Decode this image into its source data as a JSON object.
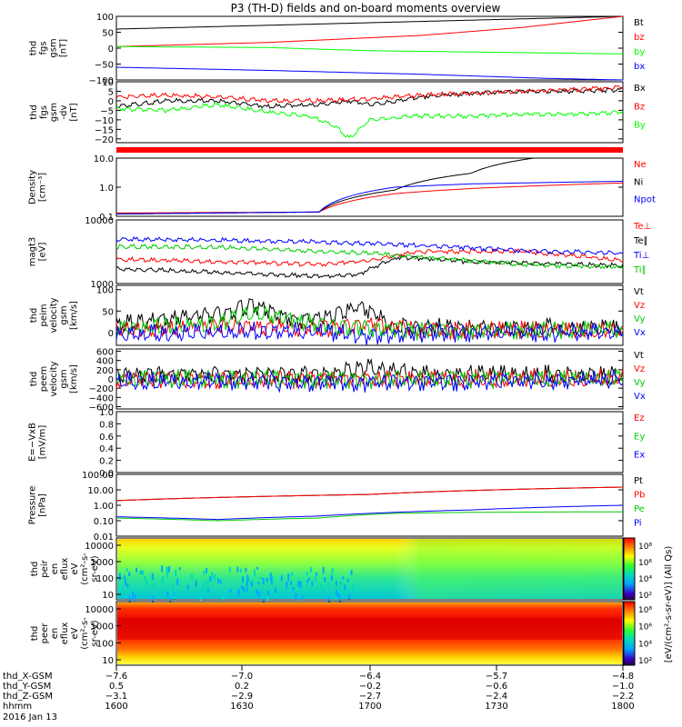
{
  "chart_data": {
    "type": "line",
    "title": "P3 (TH-D) fields and on-board moments overview",
    "panels": [
      {
        "id": "fgs_gsm",
        "label": [
          "thd",
          "fgs",
          "gsm",
          "[nT]"
        ],
        "scale": "linear",
        "ylim": [
          -100,
          100
        ],
        "ticks": [
          "100",
          "50",
          "0",
          "−50",
          "−100"
        ],
        "series": [
          {
            "name": "Bt",
            "color": "#000000",
            "x": [
              0,
              0.5,
              1
            ],
            "y": [
              60,
              80,
              100
            ]
          },
          {
            "name": "bz",
            "color": "#ff0000",
            "x": [
              0,
              0.3,
              0.6,
              0.8,
              1
            ],
            "y": [
              5,
              18,
              40,
              65,
              100
            ]
          },
          {
            "name": "by",
            "color": "#00ff00",
            "x": [
              0,
              0.3,
              0.5,
              0.7,
              1
            ],
            "y": [
              5,
              2,
              -8,
              -12,
              -18
            ]
          },
          {
            "name": "bx",
            "color": "#0000ff",
            "x": [
              0,
              0.3,
              0.6,
              0.85,
              1
            ],
            "y": [
              -60,
              -70,
              -82,
              -95,
              -100
            ]
          }
        ]
      },
      {
        "id": "fgs_gsm_dv",
        "label": [
          "thd",
          "fgs",
          "gsm",
          "-dv",
          "[nT]"
        ],
        "scale": "linear",
        "ylim": [
          -22,
          10
        ],
        "ticks": [
          "10",
          "5",
          "0",
          "−5",
          "−10",
          "−15",
          "−20"
        ],
        "series": [
          {
            "name": "Bx",
            "color": "#000000",
            "x": [
              0,
              0.1,
              0.2,
              0.3,
              0.4,
              0.46,
              0.5,
              0.53,
              0.6,
              0.7,
              0.8,
              0.9,
              1
            ],
            "y": [
              -3,
              0,
              0,
              -3,
              -2,
              0,
              -2,
              -1,
              2,
              4,
              5,
              5,
              6
            ]
          },
          {
            "name": "Bz",
            "color": "#ff0000",
            "x": [
              0,
              0.1,
              0.2,
              0.3,
              0.4,
              0.5,
              0.6,
              0.7,
              0.8,
              0.9,
              1
            ],
            "y": [
              2,
              3,
              2,
              0,
              0,
              1,
              3,
              4,
              5,
              6,
              7
            ]
          },
          {
            "name": "By",
            "color": "#00ff00",
            "x": [
              0,
              0.1,
              0.2,
              0.3,
              0.38,
              0.43,
              0.46,
              0.5,
              0.6,
              0.7,
              0.8,
              0.9,
              1
            ],
            "y": [
              -4,
              -5,
              -2,
              -6,
              -8,
              -13,
              -20,
              -10,
              -8,
              -8,
              -7,
              -7,
              -6
            ]
          }
        ]
      },
      {
        "id": "density",
        "label": [
          "Density",
          "[cm⁻³]"
        ],
        "scale": "log",
        "ylim": [
          0.1,
          10
        ],
        "ticks": [
          "10.0",
          "1.0",
          "0.1"
        ],
        "series": [
          {
            "name": "Ne",
            "color": "#ff0000",
            "x": [
              0,
              0.4,
              0.55,
              0.7,
              1
            ],
            "y": [
              0.13,
              0.14,
              0.6,
              0.9,
              1.4
            ]
          },
          {
            "name": "Ni",
            "color": "#000000",
            "x": [
              0,
              0.4,
              0.55,
              0.7,
              1
            ],
            "y": [
              0.12,
              0.14,
              0.8,
              3,
              20
            ]
          },
          {
            "name": "Npot",
            "color": "#0000ff",
            "x": [
              0,
              0.4,
              0.55,
              0.7,
              1
            ],
            "y": [
              0.12,
              0.14,
              1,
              1.3,
              1.6
            ]
          }
        ]
      },
      {
        "id": "magt3",
        "label": [
          "magt3",
          "[eV]"
        ],
        "scale": "log",
        "ylim": [
          1000,
          10000
        ],
        "ticks": [
          "10000",
          "1000"
        ],
        "series": [
          {
            "name": "Te⊥",
            "color": "#ff0000",
            "x": [
              0,
              0.2,
              0.4,
              0.5,
              0.6,
              0.8,
              1
            ],
            "y": [
              2400,
              2200,
              2000,
              2300,
              3200,
              3200,
              2300
            ]
          },
          {
            "name": "Te∥",
            "color": "#000000",
            "x": [
              0,
              0.2,
              0.4,
              0.48,
              0.56,
              0.7,
              1
            ],
            "y": [
              1700,
              1500,
              1300,
              1400,
              2600,
              2200,
              1900
            ]
          },
          {
            "name": "Ti⊥",
            "color": "#0000ff",
            "x": [
              0,
              0.2,
              0.4,
              0.6,
              0.8,
              1
            ],
            "y": [
              5000,
              4800,
              4500,
              4000,
              3300,
              3000
            ]
          },
          {
            "name": "Ti∥",
            "color": "#00cc00",
            "x": [
              0,
              0.2,
              0.4,
              0.5,
              0.6,
              0.8,
              1
            ],
            "y": [
              3800,
              3700,
              3200,
              3000,
              2600,
              2000,
              1800
            ]
          }
        ]
      },
      {
        "id": "peim_velocity",
        "label": [
          "thd",
          "peim",
          "velocity",
          "gsm",
          "[km/s]"
        ],
        "scale": "linear",
        "ylim": [
          -30,
          110
        ],
        "ticks": [
          "100",
          "50",
          "0"
        ],
        "series": [
          {
            "name": "Vt",
            "color": "#000000",
            "x": [
              0,
              0.1,
              0.2,
              0.27,
              0.35,
              0.42,
              0.48,
              0.55,
              0.7,
              1
            ],
            "y": [
              20,
              30,
              45,
              65,
              30,
              35,
              60,
              15,
              10,
              10
            ]
          },
          {
            "name": "Vz",
            "color": "#ff0000",
            "x": [
              0,
              0.2,
              0.4,
              0.5,
              0.6,
              1
            ],
            "y": [
              5,
              15,
              10,
              20,
              5,
              5
            ]
          },
          {
            "name": "Vy",
            "color": "#00cc00",
            "x": [
              0,
              0.2,
              0.27,
              0.4,
              0.5,
              0.6,
              1
            ],
            "y": [
              10,
              20,
              45,
              20,
              10,
              5,
              5
            ]
          },
          {
            "name": "Vx",
            "color": "#0000ff",
            "x": [
              0,
              0.2,
              0.4,
              0.5,
              0.6,
              1
            ],
            "y": [
              -5,
              0,
              5,
              -10,
              0,
              0
            ]
          }
        ]
      },
      {
        "id": "peem_velocity",
        "label": [
          "thd",
          "peem",
          "velocity",
          "gsm",
          "[km/s]"
        ],
        "scale": "linear",
        "ylim": [
          -650,
          650
        ],
        "ticks": [
          "600",
          "400",
          "200",
          "0",
          "−200",
          "−400",
          "−600"
        ],
        "series": [
          {
            "name": "Vt",
            "color": "#000000",
            "x": [
              0,
              0.2,
              0.4,
              0.5,
              0.6,
              1
            ],
            "y": [
              100,
              100,
              100,
              250,
              100,
              80
            ]
          },
          {
            "name": "Vz",
            "color": "#ff0000",
            "x": [
              0,
              0.5,
              1
            ],
            "y": [
              0,
              0,
              0
            ]
          },
          {
            "name": "Vy",
            "color": "#00cc00",
            "x": [
              0,
              0.5,
              1
            ],
            "y": [
              0,
              0,
              0
            ]
          },
          {
            "name": "Vx",
            "color": "#0000ff",
            "x": [
              0,
              0.5,
              1
            ],
            "y": [
              -50,
              -80,
              -20
            ]
          }
        ]
      },
      {
        "id": "efield",
        "label": [
          "E=−VxB",
          "[mV/m]"
        ],
        "scale": "linear",
        "ylim": [
          0,
          1
        ],
        "ticks": [
          "1.0",
          "0.8",
          "0.6",
          "0.4",
          "0.2",
          "0.0"
        ],
        "series": [
          {
            "name": "Ez",
            "color": "#ff0000",
            "x": [],
            "y": []
          },
          {
            "name": "Ey",
            "color": "#00cc00",
            "x": [],
            "y": []
          },
          {
            "name": "Ex",
            "color": "#0000ff",
            "x": [],
            "y": []
          }
        ]
      },
      {
        "id": "pressure",
        "label": [
          "Pressure",
          "[nPa]"
        ],
        "scale": "log",
        "ylim": [
          0.01,
          100
        ],
        "ticks": [
          "100.00",
          "10.00",
          "1.00",
          "0.10",
          "0.01"
        ],
        "series": [
          {
            "name": "Pt",
            "color": "#000000",
            "x": [
              0,
              0.5,
              1
            ],
            "y": [
              2,
              5,
              15
            ]
          },
          {
            "name": "Pb",
            "color": "#ff0000",
            "x": [
              0,
              0.5,
              1
            ],
            "y": [
              2,
              5,
              15
            ]
          },
          {
            "name": "Pe",
            "color": "#00cc00",
            "x": [
              0,
              0.2,
              0.4,
              0.55,
              0.7,
              1
            ],
            "y": [
              0.15,
              0.1,
              0.15,
              0.3,
              0.35,
              0.38
            ]
          },
          {
            "name": "Pi",
            "color": "#0000ff",
            "x": [
              0,
              0.2,
              0.4,
              0.55,
              0.7,
              1
            ],
            "y": [
              0.18,
              0.12,
              0.2,
              0.35,
              0.5,
              1.0
            ]
          }
        ]
      }
    ],
    "spectrograms": [
      {
        "id": "peir",
        "label": [
          "thd",
          "peir",
          "en",
          "eflux",
          "eV",
          "(cm²-s-",
          "sr-eV)"
        ],
        "ticks": [
          "10000",
          "1000",
          "100",
          "10"
        ],
        "zticks": [
          "10⁸",
          "10⁶",
          "10⁴",
          "10²"
        ]
      },
      {
        "id": "peer",
        "label": [
          "thd",
          "peer",
          "en",
          "eflux",
          "eV",
          "(cm²-s-",
          "sr-eV)"
        ],
        "ticks": [
          "10000",
          "1000",
          "100",
          "10"
        ],
        "zticks": [
          "10⁸",
          "10⁶",
          "10⁴",
          "10²"
        ]
      }
    ],
    "colorbar_label": "[eV/(cm²-s-sr-eV)] (All Qs)",
    "x_axis": {
      "rows": [
        {
          "name": "thd_X-GSM",
          "values": [
            "−7.6",
            "−7.0",
            "−6.4",
            "−5.7",
            "−4.8"
          ]
        },
        {
          "name": "thd_Y-GSM",
          "values": [
            "0.5",
            "0.2",
            "−0.2",
            "−0.6",
            "−1.0"
          ]
        },
        {
          "name": "thd_Z-GSM",
          "values": [
            "−3.1",
            "−2.9",
            "−2.7",
            "−2.4",
            "−2.2"
          ]
        },
        {
          "name": "hhmm",
          "values": [
            "1600",
            "1630",
            "1700",
            "1730",
            "1800"
          ]
        }
      ],
      "date": "2016 Jan 13"
    }
  }
}
